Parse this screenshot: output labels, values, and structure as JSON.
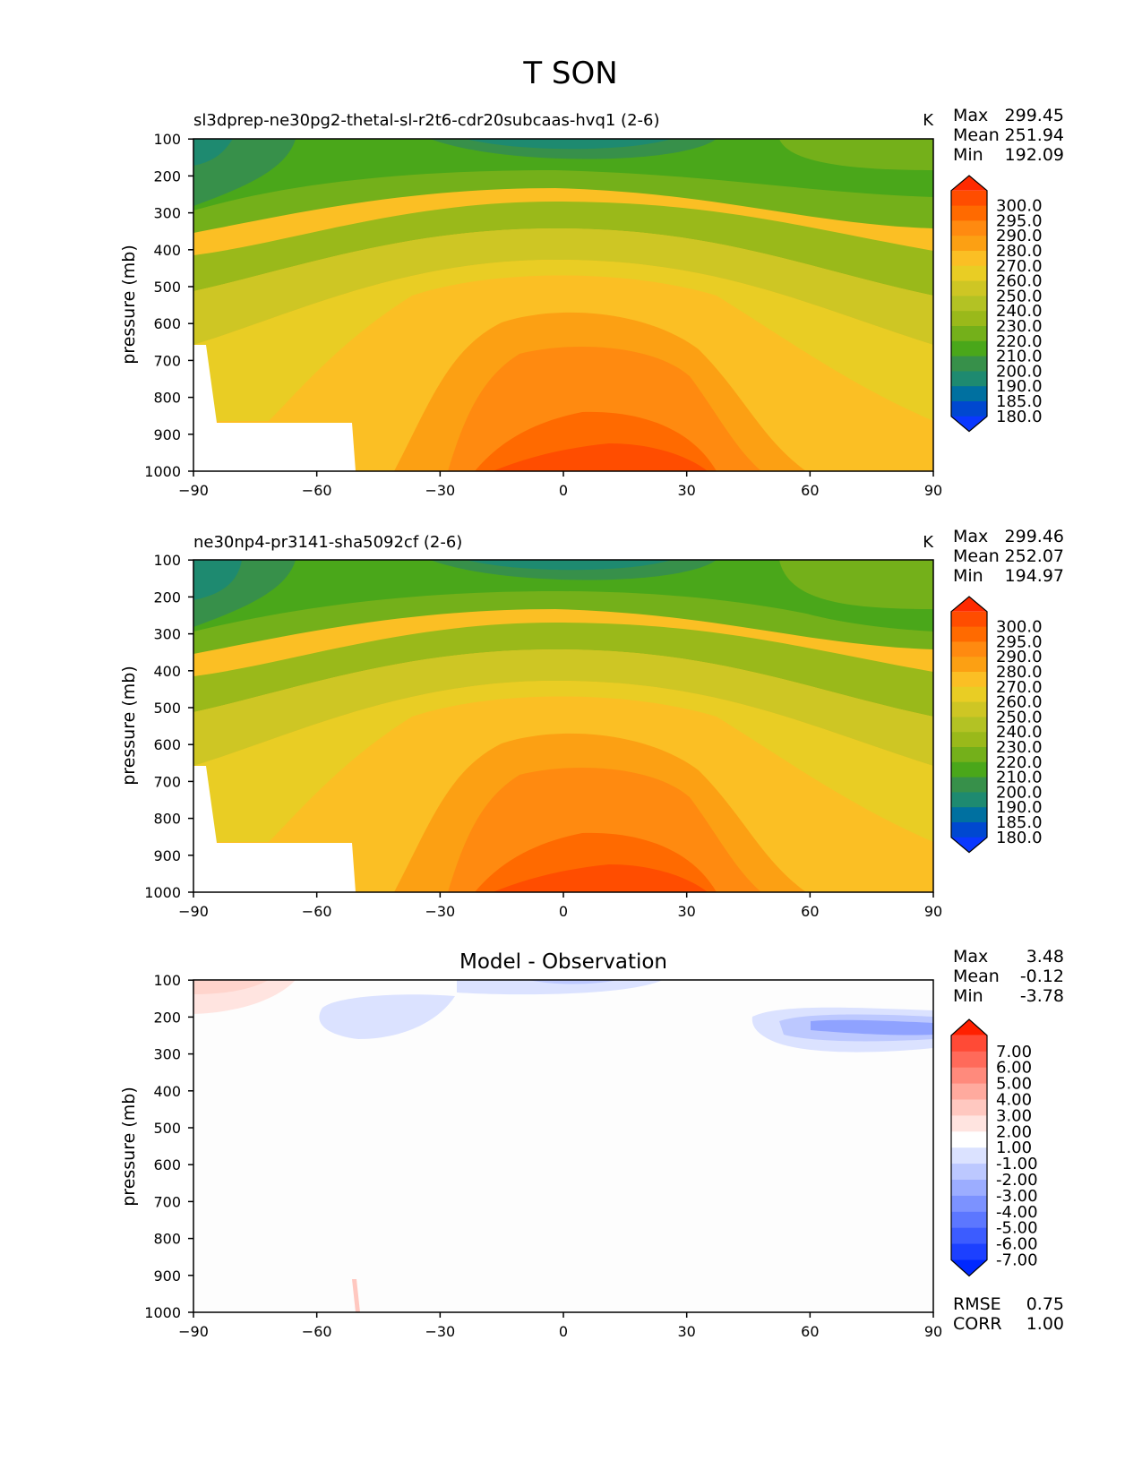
{
  "figure_title": "T SON",
  "cbar_upper_labels": [
    "300.0",
    "295.0",
    "290.0",
    "280.0",
    "270.0",
    "260.0",
    "250.0",
    "240.0",
    "230.0",
    "220.0",
    "210.0",
    "200.0",
    "190.0",
    "185.0",
    "180.0"
  ],
  "cbar_upper_colors": [
    "#ff2a00",
    "#ff4d00",
    "#ff6a00",
    "#ff8a10",
    "#fca013",
    "#fbbf24",
    "#e9cd24",
    "#cec624",
    "#b3c224",
    "#9ab91a",
    "#74b01a",
    "#4aa71a",
    "#37904a",
    "#1e8a70",
    "#0070a0",
    "#0048d0",
    "#0a38ff"
  ],
  "cbar_diff_labels": [
    "7.00",
    "6.00",
    "5.00",
    "4.00",
    "3.00",
    "2.00",
    "1.00",
    "-1.00",
    "-2.00",
    "-3.00",
    "-4.00",
    "-5.00",
    "-6.00",
    "-7.00"
  ],
  "cbar_diff_colors": [
    "#ff2000",
    "#ff4a36",
    "#ff6a5a",
    "#ff8a7c",
    "#ffaa9e",
    "#ffc8c0",
    "#ffe4e0",
    "#ffffff",
    "#dbe2ff",
    "#bcc8ff",
    "#9cadff",
    "#7c92ff",
    "#5c77ff",
    "#3c5cff",
    "#1c40ff",
    "#0028ff"
  ],
  "chart_data": [
    {
      "type": "heatmap",
      "title": "sl3dprep-ne30pg2-thetal-sl-r2t6-cdr20subcaas-hvq1 (2-6)",
      "units": "K",
      "ylabel": "pressure (mb)",
      "xlabel": "",
      "x_ticks": [
        "−90",
        "−60",
        "−30",
        "0",
        "30",
        "60",
        "90"
      ],
      "y_ticks": [
        "100",
        "200",
        "300",
        "400",
        "500",
        "600",
        "700",
        "800",
        "900",
        "1000"
      ],
      "xlim": [
        -90,
        90
      ],
      "ylim": [
        1000,
        100
      ],
      "stats": [
        {
          "label": "Max",
          "value": "299.45"
        },
        {
          "label": "Mean",
          "value": "251.94"
        },
        {
          "label": "Min",
          "value": "192.09"
        }
      ]
    },
    {
      "type": "heatmap",
      "title": "ne30np4-pr3141-sha5092cf (2-6)",
      "units": "K",
      "ylabel": "pressure (mb)",
      "xlabel": "",
      "x_ticks": [
        "−90",
        "−60",
        "−30",
        "0",
        "30",
        "60",
        "90"
      ],
      "y_ticks": [
        "100",
        "200",
        "300",
        "400",
        "500",
        "600",
        "700",
        "800",
        "900",
        "1000"
      ],
      "xlim": [
        -90,
        90
      ],
      "ylim": [
        1000,
        100
      ],
      "stats": [
        {
          "label": "Max",
          "value": "299.46"
        },
        {
          "label": "Mean",
          "value": "252.07"
        },
        {
          "label": "Min",
          "value": "194.97"
        }
      ]
    },
    {
      "type": "heatmap",
      "title": "Model - Observation",
      "units": "",
      "ylabel": "pressure (mb)",
      "xlabel": "",
      "x_ticks": [
        "−90",
        "−60",
        "−30",
        "0",
        "30",
        "60",
        "90"
      ],
      "y_ticks": [
        "100",
        "200",
        "300",
        "400",
        "500",
        "600",
        "700",
        "800",
        "900",
        "1000"
      ],
      "xlim": [
        -90,
        90
      ],
      "ylim": [
        1000,
        100
      ],
      "stats": [
        {
          "label": "Max",
          "value": "3.48"
        },
        {
          "label": "Mean",
          "value": "-0.12"
        },
        {
          "label": "Min",
          "value": "-3.78"
        }
      ],
      "metrics": [
        {
          "label": "RMSE",
          "value": "0.75"
        },
        {
          "label": "CORR",
          "value": "1.00"
        }
      ]
    }
  ]
}
